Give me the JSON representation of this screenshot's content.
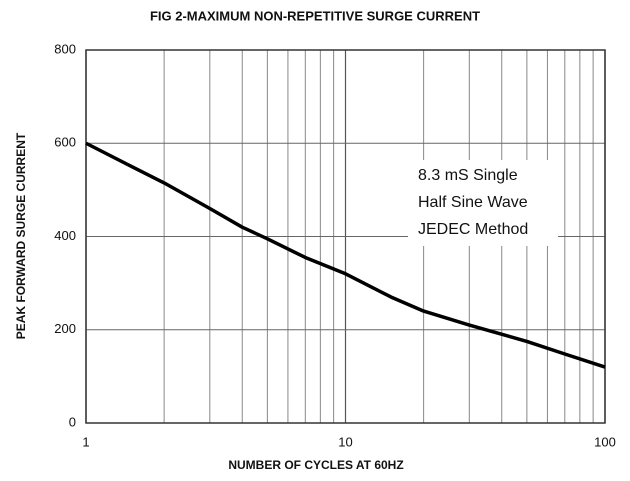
{
  "chart_data": {
    "type": "line",
    "title": "FIG 2-MAXIMUM NON-REPETITIVE  SURGE CURRENT",
    "xlabel": "NUMBER OF CYCLES AT 60HZ",
    "ylabel": "PEAK FORWARD SURGE CURRENT",
    "annotation": [
      "8.3 mS Single",
      "Half Sine Wave",
      "JEDEC Method"
    ],
    "xscale": "log",
    "x": [
      1,
      1.5,
      2,
      3,
      4,
      5,
      7,
      10,
      15,
      20,
      30,
      50,
      70,
      100
    ],
    "series": [
      {
        "name": "Surge current",
        "color": "#000000",
        "values": [
          600,
          550,
          515,
          460,
          420,
          395,
          355,
          320,
          270,
          240,
          210,
          175,
          148,
          120
        ]
      }
    ],
    "xlim": [
      1,
      100
    ],
    "xticks": [
      1,
      10,
      100
    ],
    "minor_xticks": [
      2,
      3,
      4,
      5,
      6,
      7,
      8,
      9,
      20,
      30,
      40,
      50,
      60,
      70,
      80,
      90
    ],
    "ylim": [
      0,
      800
    ],
    "yticks": [
      0,
      200,
      400,
      600,
      800
    ],
    "grid": true
  }
}
